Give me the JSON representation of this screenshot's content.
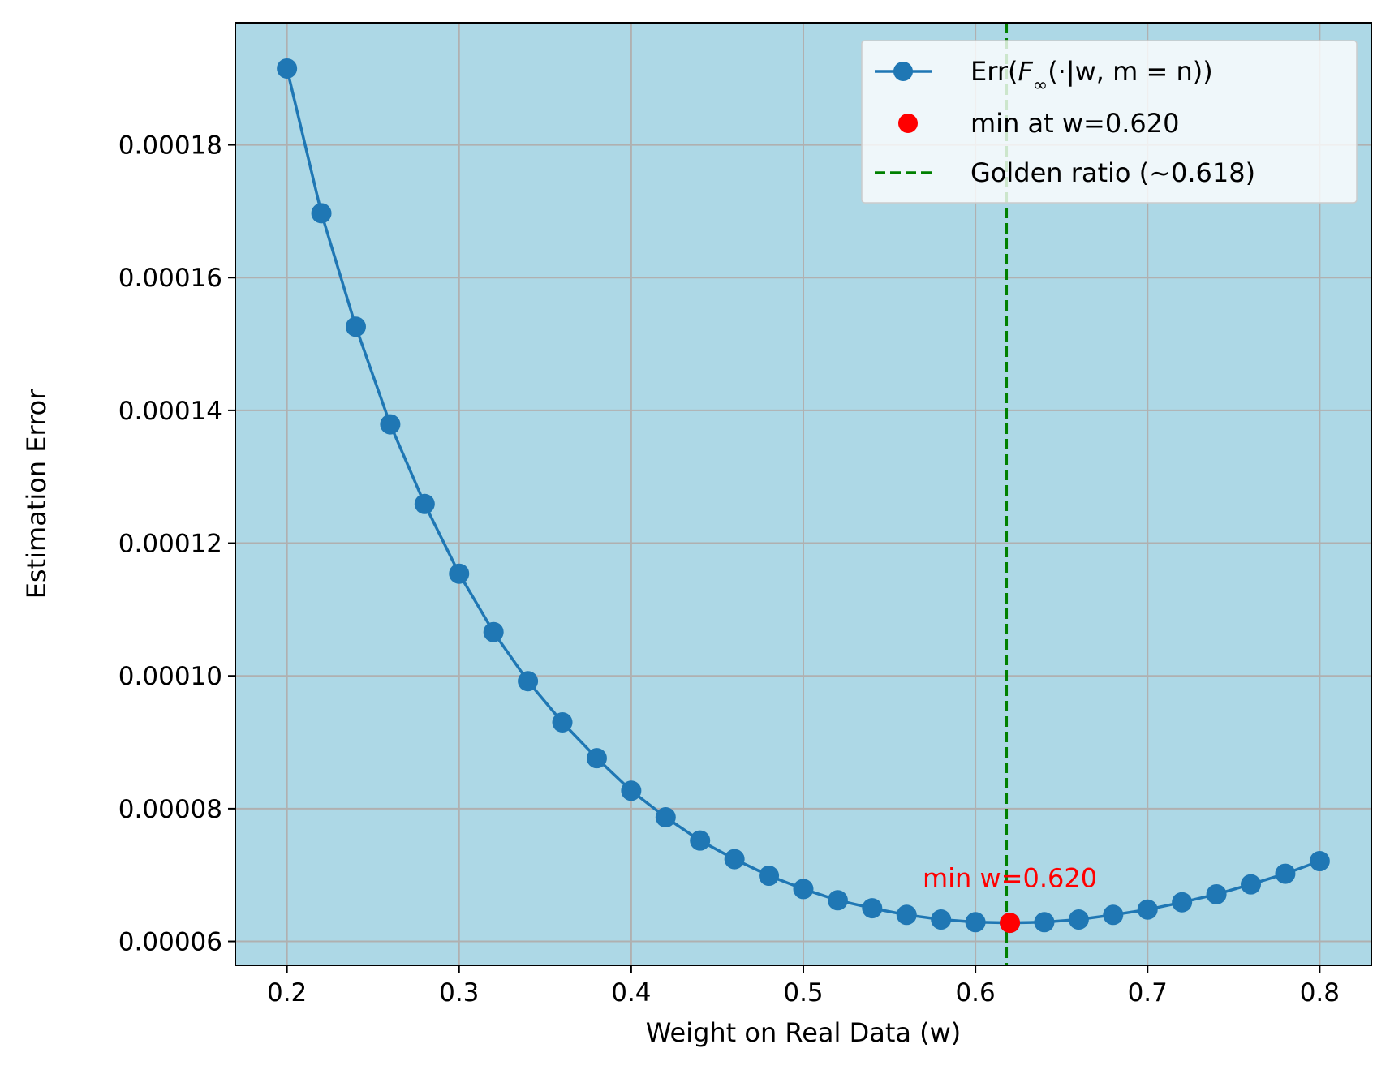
{
  "chart_data": {
    "type": "line",
    "title": "",
    "xlabel": "Weight on Real Data (w)",
    "ylabel": "Estimation Error",
    "xlim": [
      0.17,
      0.83
    ],
    "ylim": [
      5.64e-05,
      0.0001984
    ],
    "grid": true,
    "background_color": "#add8e6",
    "x_ticks": [
      0.2,
      0.3,
      0.4,
      0.5,
      0.6,
      0.7,
      0.8
    ],
    "x_tick_labels": [
      "0.2",
      "0.3",
      "0.4",
      "0.5",
      "0.6",
      "0.7",
      "0.8"
    ],
    "y_ticks": [
      6e-05,
      8e-05,
      0.0001,
      0.00012,
      0.00014,
      0.00016,
      0.00018
    ],
    "y_tick_labels": [
      "0.00006",
      "0.00008",
      "0.00010",
      "0.00012",
      "0.00014",
      "0.00016",
      "0.00018"
    ],
    "series": [
      {
        "name": "Err(F∞(·|w, m = n))",
        "color": "#1f77b4",
        "x": [
          0.2,
          0.22,
          0.24,
          0.26,
          0.28,
          0.3,
          0.32,
          0.34,
          0.36,
          0.38,
          0.4,
          0.42,
          0.44,
          0.46,
          0.48,
          0.5,
          0.52,
          0.54,
          0.56,
          0.58,
          0.6,
          0.62,
          0.64,
          0.66,
          0.68,
          0.7,
          0.72,
          0.74,
          0.76,
          0.78,
          0.8
        ],
        "y": [
          0.0001915,
          0.0001697,
          0.0001526,
          0.0001379,
          0.0001259,
          0.0001154,
          0.0001066,
          9.92e-05,
          9.3e-05,
          8.76e-05,
          8.27e-05,
          7.87e-05,
          7.52e-05,
          7.24e-05,
          6.99e-05,
          6.79e-05,
          6.62e-05,
          6.5e-05,
          6.4e-05,
          6.33e-05,
          6.29e-05,
          6.28e-05,
          6.29e-05,
          6.33e-05,
          6.4e-05,
          6.48e-05,
          6.59e-05,
          6.71e-05,
          6.86e-05,
          7.02e-05,
          7.21e-05
        ]
      }
    ],
    "min_point": {
      "name": "min at w=0.620",
      "x": 0.62,
      "y": 6.28e-05,
      "color": "#ff0000"
    },
    "vline": {
      "name": "Golden ratio (~0.618)",
      "x": 0.618,
      "color": "#008000"
    },
    "annotation": {
      "text": "min w=0.620",
      "x": 0.62,
      "y": 6.28e-05,
      "color": "#ff0000"
    },
    "legend": {
      "position": "top-right",
      "entries": [
        {
          "label_prefix": "Err(",
          "label_math": "F",
          "label_sub": "∞",
          "label_suffix": "(·|w, m = n))",
          "kind": "line-marker"
        },
        {
          "label": "min at w=0.620",
          "kind": "dot"
        },
        {
          "label": "Golden ratio (~0.618)",
          "kind": "dashed"
        }
      ]
    }
  }
}
